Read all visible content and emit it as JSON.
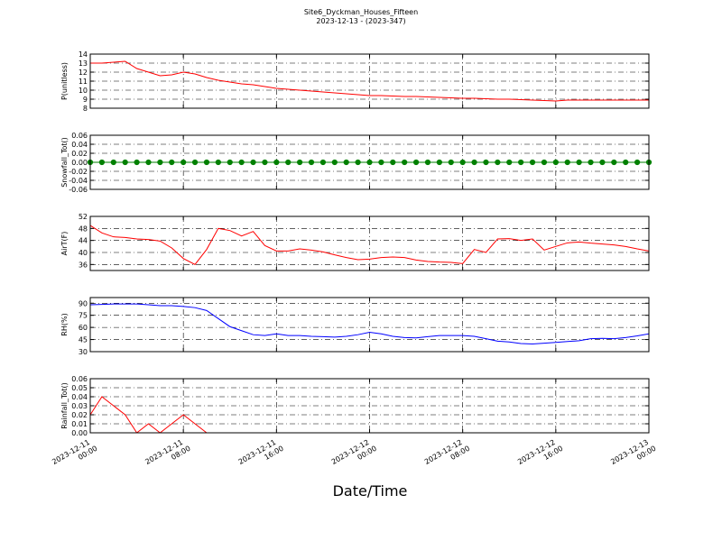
{
  "chart_data": [
    {
      "type": "line",
      "title": "Site6_Dyckman_Houses_Fifteen",
      "subtitle": "2023-12-13 - (2023-347)",
      "ylabel": "P(unitless)",
      "x": [
        "2023-12-11 00:00",
        "2023-12-11 01:00",
        "2023-12-11 02:00",
        "2023-12-11 03:00",
        "2023-12-11 04:00",
        "2023-12-11 05:00",
        "2023-12-11 06:00",
        "2023-12-11 07:00",
        "2023-12-11 08:00",
        "2023-12-11 09:00",
        "2023-12-11 10:00",
        "2023-12-11 11:00",
        "2023-12-11 12:00",
        "2023-12-11 13:00",
        "2023-12-11 14:00",
        "2023-12-11 15:00",
        "2023-12-11 16:00",
        "2023-12-11 17:00",
        "2023-12-11 18:00",
        "2023-12-11 19:00",
        "2023-12-11 20:00",
        "2023-12-11 21:00",
        "2023-12-11 22:00",
        "2023-12-11 23:00",
        "2023-12-12 00:00",
        "2023-12-12 01:00",
        "2023-12-12 02:00",
        "2023-12-12 03:00",
        "2023-12-12 04:00",
        "2023-12-12 05:00",
        "2023-12-12 06:00",
        "2023-12-12 07:00",
        "2023-12-12 08:00",
        "2023-12-12 09:00",
        "2023-12-12 10:00",
        "2023-12-12 11:00",
        "2023-12-12 12:00",
        "2023-12-12 13:00",
        "2023-12-12 14:00",
        "2023-12-12 15:00",
        "2023-12-12 16:00",
        "2023-12-12 17:00",
        "2023-12-12 18:00",
        "2023-12-12 19:00",
        "2023-12-12 20:00",
        "2023-12-12 21:00",
        "2023-12-12 22:00",
        "2023-12-12 23:00",
        "2023-12-13 00:00"
      ],
      "xlim": [
        "2023-12-11 00:00",
        "2023-12-13 00:00"
      ],
      "values": [
        13.0,
        13.0,
        13.1,
        13.2,
        12.4,
        12.0,
        11.6,
        11.7,
        12.0,
        11.8,
        11.4,
        11.1,
        10.9,
        10.7,
        10.6,
        10.4,
        10.2,
        10.1,
        10.0,
        9.9,
        9.8,
        9.7,
        9.6,
        9.5,
        9.4,
        9.4,
        9.35,
        9.3,
        9.3,
        9.25,
        9.2,
        9.15,
        9.1,
        9.1,
        9.05,
        9.0,
        9.0,
        8.95,
        8.9,
        8.85,
        8.8,
        8.9,
        8.9,
        8.9,
        8.9,
        8.9,
        8.9,
        8.9,
        8.9
      ],
      "color": "#ff0000",
      "ylim": [
        8,
        14
      ],
      "yticks": [
        8,
        9,
        10,
        11,
        12,
        13,
        14
      ],
      "grid": true
    },
    {
      "type": "line",
      "ylabel": "Snowfall_Tot()",
      "x": [
        "2023-12-11 00:00",
        "2023-12-11 01:00",
        "2023-12-11 02:00",
        "2023-12-11 03:00",
        "2023-12-11 04:00",
        "2023-12-11 05:00",
        "2023-12-11 06:00",
        "2023-12-11 07:00",
        "2023-12-11 08:00",
        "2023-12-11 09:00",
        "2023-12-11 10:00",
        "2023-12-11 11:00",
        "2023-12-11 12:00",
        "2023-12-11 13:00",
        "2023-12-11 14:00",
        "2023-12-11 15:00",
        "2023-12-11 16:00",
        "2023-12-11 17:00",
        "2023-12-11 18:00",
        "2023-12-11 19:00",
        "2023-12-11 20:00",
        "2023-12-11 21:00",
        "2023-12-11 22:00",
        "2023-12-11 23:00",
        "2023-12-12 00:00",
        "2023-12-12 01:00",
        "2023-12-12 02:00",
        "2023-12-12 03:00",
        "2023-12-12 04:00",
        "2023-12-12 05:00",
        "2023-12-12 06:00",
        "2023-12-12 07:00",
        "2023-12-12 08:00",
        "2023-12-12 09:00",
        "2023-12-12 10:00",
        "2023-12-12 11:00",
        "2023-12-12 12:00",
        "2023-12-12 13:00",
        "2023-12-12 14:00",
        "2023-12-12 15:00",
        "2023-12-12 16:00",
        "2023-12-12 17:00",
        "2023-12-12 18:00",
        "2023-12-12 19:00",
        "2023-12-12 20:00",
        "2023-12-12 21:00",
        "2023-12-12 22:00",
        "2023-12-12 23:00",
        "2023-12-13 00:00"
      ],
      "xlim": [
        "2023-12-11 00:00",
        "2023-12-13 00:00"
      ],
      "values": [
        0,
        0,
        0,
        0,
        0,
        0,
        0,
        0,
        0,
        0,
        0,
        0,
        0,
        0,
        0,
        0,
        0,
        0,
        0,
        0,
        0,
        0,
        0,
        0,
        0,
        0,
        0,
        0,
        0,
        0,
        0,
        0,
        0,
        0,
        0,
        0,
        0,
        0,
        0,
        0,
        0,
        0,
        0,
        0,
        0,
        0,
        0,
        0,
        0
      ],
      "color": "#008000",
      "marker": "o",
      "ylim": [
        -0.06,
        0.06
      ],
      "yticks": [
        -0.06,
        -0.04,
        -0.02,
        {
          "value": 0,
          "label": "0.00"
        },
        0.02,
        0.04,
        0.06
      ],
      "grid": true
    },
    {
      "type": "line",
      "ylabel": "AirT(F)",
      "x": [
        "2023-12-11 00:00",
        "2023-12-11 01:00",
        "2023-12-11 02:00",
        "2023-12-11 03:00",
        "2023-12-11 04:00",
        "2023-12-11 05:00",
        "2023-12-11 06:00",
        "2023-12-11 07:00",
        "2023-12-11 08:00",
        "2023-12-11 09:00",
        "2023-12-11 10:00",
        "2023-12-11 11:00",
        "2023-12-11 12:00",
        "2023-12-11 13:00",
        "2023-12-11 14:00",
        "2023-12-11 15:00",
        "2023-12-11 16:00",
        "2023-12-11 17:00",
        "2023-12-11 18:00",
        "2023-12-11 19:00",
        "2023-12-11 20:00",
        "2023-12-11 21:00",
        "2023-12-11 22:00",
        "2023-12-11 23:00",
        "2023-12-12 00:00",
        "2023-12-12 01:00",
        "2023-12-12 02:00",
        "2023-12-12 03:00",
        "2023-12-12 04:00",
        "2023-12-12 05:00",
        "2023-12-12 06:00",
        "2023-12-12 07:00",
        "2023-12-12 08:00",
        "2023-12-12 09:00",
        "2023-12-12 10:00",
        "2023-12-12 11:00",
        "2023-12-12 12:00",
        "2023-12-12 13:00",
        "2023-12-12 14:00",
        "2023-12-12 15:00",
        "2023-12-12 16:00",
        "2023-12-12 17:00",
        "2023-12-12 18:00",
        "2023-12-12 19:00",
        "2023-12-12 20:00",
        "2023-12-12 21:00",
        "2023-12-12 22:00",
        "2023-12-12 23:00",
        "2023-12-13 00:00"
      ],
      "xlim": [
        "2023-12-11 00:00",
        "2023-12-13 00:00"
      ],
      "values": [
        49,
        46.5,
        45.2,
        45,
        44.5,
        44.3,
        43.8,
        41.5,
        38,
        36,
        41,
        48,
        47.3,
        45.5,
        47,
        42.3,
        40.5,
        40.5,
        41.2,
        40.8,
        40.2,
        39.2,
        38.3,
        37.6,
        37.8,
        38.3,
        38.5,
        38.3,
        37.5,
        37,
        36.8,
        36.7,
        36.3,
        41,
        40,
        44.5,
        44.6,
        44,
        44.5,
        40.8,
        42,
        43.2,
        43.5,
        43.1,
        42.8,
        42.5,
        42,
        41.2,
        40.5
      ],
      "color": "#ff0000",
      "ylim": [
        34,
        52
      ],
      "yticks": [
        36,
        40,
        44,
        48,
        52
      ],
      "grid": true
    },
    {
      "type": "line",
      "ylabel": "RH(%)",
      "x": [
        "2023-12-11 00:00",
        "2023-12-11 01:00",
        "2023-12-11 02:00",
        "2023-12-11 03:00",
        "2023-12-11 04:00",
        "2023-12-11 05:00",
        "2023-12-11 06:00",
        "2023-12-11 07:00",
        "2023-12-11 08:00",
        "2023-12-11 09:00",
        "2023-12-11 10:00",
        "2023-12-11 11:00",
        "2023-12-11 12:00",
        "2023-12-11 13:00",
        "2023-12-11 14:00",
        "2023-12-11 15:00",
        "2023-12-11 16:00",
        "2023-12-11 17:00",
        "2023-12-11 18:00",
        "2023-12-11 19:00",
        "2023-12-11 20:00",
        "2023-12-11 21:00",
        "2023-12-11 22:00",
        "2023-12-11 23:00",
        "2023-12-12 00:00",
        "2023-12-12 01:00",
        "2023-12-12 02:00",
        "2023-12-12 03:00",
        "2023-12-12 04:00",
        "2023-12-12 05:00",
        "2023-12-12 06:00",
        "2023-12-12 07:00",
        "2023-12-12 08:00",
        "2023-12-12 09:00",
        "2023-12-12 10:00",
        "2023-12-12 11:00",
        "2023-12-12 12:00",
        "2023-12-12 13:00",
        "2023-12-12 14:00",
        "2023-12-12 15:00",
        "2023-12-12 16:00",
        "2023-12-12 17:00",
        "2023-12-12 18:00",
        "2023-12-12 19:00",
        "2023-12-12 20:00",
        "2023-12-12 21:00",
        "2023-12-12 22:00",
        "2023-12-12 23:00",
        "2023-12-13 00:00"
      ],
      "xlim": [
        "2023-12-11 00:00",
        "2023-12-13 00:00"
      ],
      "values": [
        88,
        88.5,
        89,
        89,
        89,
        88,
        87,
        87,
        86,
        84.5,
        81,
        71,
        61,
        56,
        51,
        50,
        52,
        50,
        50,
        49,
        48.5,
        48,
        49,
        51,
        54,
        52,
        49,
        47.5,
        47,
        48.5,
        50,
        50,
        50,
        49,
        46,
        43,
        42,
        40,
        39.5,
        40.5,
        41.5,
        42.5,
        43.5,
        46,
        46.5,
        46,
        47.5,
        49.5,
        52
      ],
      "color": "#0000ff",
      "ylim": [
        30,
        97
      ],
      "yticks": [
        30,
        45,
        60,
        75,
        90
      ],
      "grid": true
    },
    {
      "type": "line",
      "ylabel": "Rainfall_Tot()",
      "xlabel": "Date/Time",
      "x": [
        "2023-12-11 00:00",
        "2023-12-11 01:00",
        "2023-12-11 02:00",
        "2023-12-11 03:00",
        "2023-12-11 04:00",
        "2023-12-11 05:00",
        "2023-12-11 06:00",
        "2023-12-11 07:00",
        "2023-12-11 08:00",
        "2023-12-11 09:00",
        "2023-12-11 10:00",
        "2023-12-11 11:00",
        "2023-12-11 12:00",
        "2023-12-11 13:00",
        "2023-12-11 14:00",
        "2023-12-11 15:00",
        "2023-12-11 16:00",
        "2023-12-11 17:00",
        "2023-12-11 18:00",
        "2023-12-11 19:00",
        "2023-12-11 20:00",
        "2023-12-11 21:00",
        "2023-12-11 22:00",
        "2023-12-11 23:00",
        "2023-12-12 00:00",
        "2023-12-12 01:00",
        "2023-12-12 02:00",
        "2023-12-12 03:00",
        "2023-12-12 04:00",
        "2023-12-12 05:00",
        "2023-12-12 06:00",
        "2023-12-12 07:00",
        "2023-12-12 08:00",
        "2023-12-12 09:00",
        "2023-12-12 10:00",
        "2023-12-12 11:00",
        "2023-12-12 12:00",
        "2023-12-12 13:00",
        "2023-12-12 14:00",
        "2023-12-12 15:00",
        "2023-12-12 16:00",
        "2023-12-12 17:00",
        "2023-12-12 18:00",
        "2023-12-12 19:00",
        "2023-12-12 20:00",
        "2023-12-12 21:00",
        "2023-12-12 22:00",
        "2023-12-12 23:00",
        "2023-12-13 00:00"
      ],
      "xlim": [
        "2023-12-11 00:00",
        "2023-12-13 00:00"
      ],
      "xticks": [
        {
          "value": "2023-12-11 00:00",
          "label": "2023-12-11 00:00"
        },
        {
          "value": "2023-12-11 08:00",
          "label": "2023-12-11 08:00"
        },
        {
          "value": "2023-12-11 16:00",
          "label": "2023-12-11 16:00"
        },
        {
          "value": "2023-12-12 00:00",
          "label": "2023-12-12 00:00"
        },
        {
          "value": "2023-12-12 08:00",
          "label": "2023-12-12 08:00"
        },
        {
          "value": "2023-12-12 16:00",
          "label": "2023-12-12 16:00"
        },
        {
          "value": "2023-12-13 00:00",
          "label": "2023-12-13 00:00"
        }
      ],
      "values": [
        0.02,
        0.04,
        0.03,
        0.02,
        0,
        0.01,
        0,
        0.01,
        0.02,
        0.01,
        0,
        0,
        0,
        0,
        0,
        0,
        0,
        0,
        0,
        0,
        0,
        0,
        0,
        0,
        0,
        0,
        0,
        0,
        0,
        0,
        0,
        0,
        0,
        0,
        0,
        0,
        0,
        0,
        0,
        0,
        0,
        0,
        0,
        0,
        0,
        0,
        0,
        0,
        0
      ],
      "color": "#ff0000",
      "ylim": [
        0,
        0.06
      ],
      "yticks": [
        {
          "value": 0,
          "label": "0.00"
        },
        0.01,
        0.02,
        0.03,
        0.04,
        0.05,
        0.06
      ],
      "grid": true
    }
  ]
}
